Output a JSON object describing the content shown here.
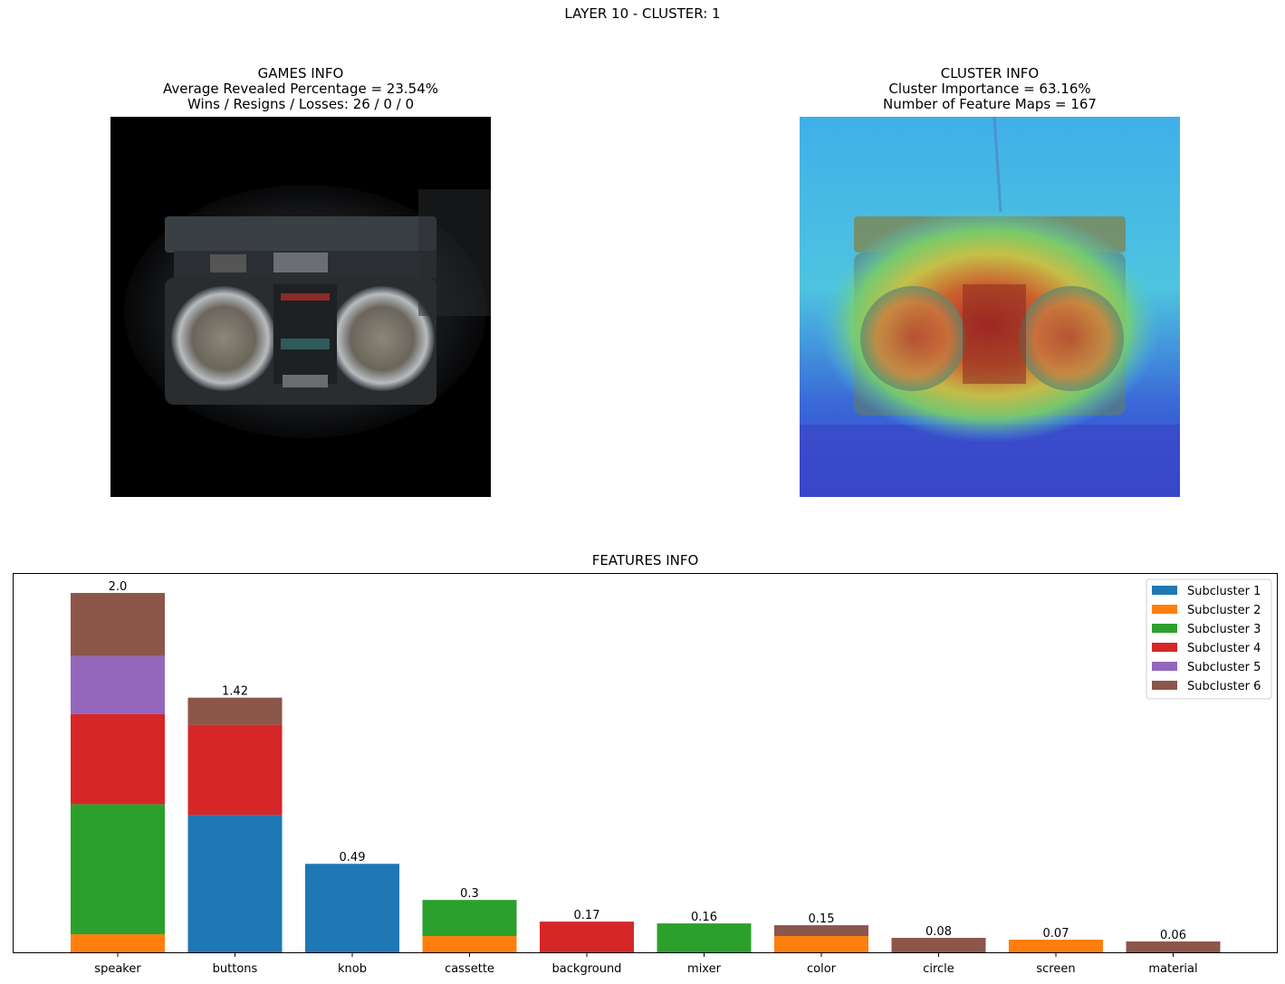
{
  "suptitle": "LAYER 10 - CLUSTER: 1",
  "games_info": {
    "title": "GAMES INFO",
    "line1": "Average Revealed Percentage = 23.54%",
    "line2": "Wins / Resigns / Losses: 26 / 0 / 0"
  },
  "cluster_info": {
    "title": "CLUSTER INFO",
    "line1": "Cluster Importance = 63.16%",
    "line2": "Number of Feature Maps = 167"
  },
  "chart_data": {
    "type": "bar",
    "stacked": true,
    "title": "FEATURES INFO",
    "xlabel": "",
    "ylabel": "",
    "ylim": [
      0,
      2.1
    ],
    "legend_position": "top-right",
    "categories": [
      "speaker",
      "buttons",
      "knob",
      "cassette",
      "background",
      "mixer",
      "color",
      "circle",
      "screen",
      "material"
    ],
    "totals_labels": [
      "2.0",
      "1.42",
      "0.49",
      "0.3",
      "0.17",
      "0.16",
      "0.15",
      "0.08",
      "0.07",
      "0.06"
    ],
    "series": [
      {
        "name": "Subcluster 1",
        "color": "#1f77b4",
        "values": [
          0,
          0.76,
          0.49,
          0,
          0,
          0,
          0,
          0,
          0,
          0
        ]
      },
      {
        "name": "Subcluster 2",
        "color": "#ff7f0e",
        "values": [
          0.1,
          0,
          0,
          0.09,
          0,
          0,
          0.09,
          0,
          0.07,
          0
        ]
      },
      {
        "name": "Subcluster 3",
        "color": "#2ca02c",
        "values": [
          0.72,
          0,
          0,
          0.2,
          0,
          0.16,
          0,
          0,
          0,
          0
        ]
      },
      {
        "name": "Subcluster 4",
        "color": "#d62728",
        "values": [
          0.5,
          0.5,
          0,
          0,
          0.17,
          0,
          0,
          0,
          0,
          0
        ]
      },
      {
        "name": "Subcluster 5",
        "color": "#9467bd",
        "values": [
          0.32,
          0,
          0,
          0,
          0,
          0,
          0,
          0,
          0,
          0
        ]
      },
      {
        "name": "Subcluster 6",
        "color": "#8c564b",
        "values": [
          0.35,
          0.15,
          0,
          0,
          0,
          0,
          0.06,
          0.08,
          0,
          0.06
        ]
      }
    ]
  }
}
